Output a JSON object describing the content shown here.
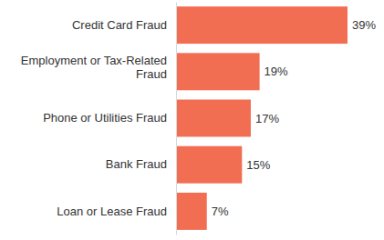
{
  "chart_data": {
    "type": "bar",
    "orientation": "horizontal",
    "categories": [
      "Credit Card Fraud",
      "Employment or Tax-Related Fraud",
      "Phone or Utilities Fraud",
      "Bank Fraud",
      "Loan or Lease Fraud"
    ],
    "values": [
      39,
      19,
      17,
      15,
      7
    ],
    "value_labels": [
      "39%",
      "19%",
      "17%",
      "15%",
      "7%"
    ],
    "color": "#f26e52",
    "data_labels": true,
    "tick_labels": "y"
  }
}
